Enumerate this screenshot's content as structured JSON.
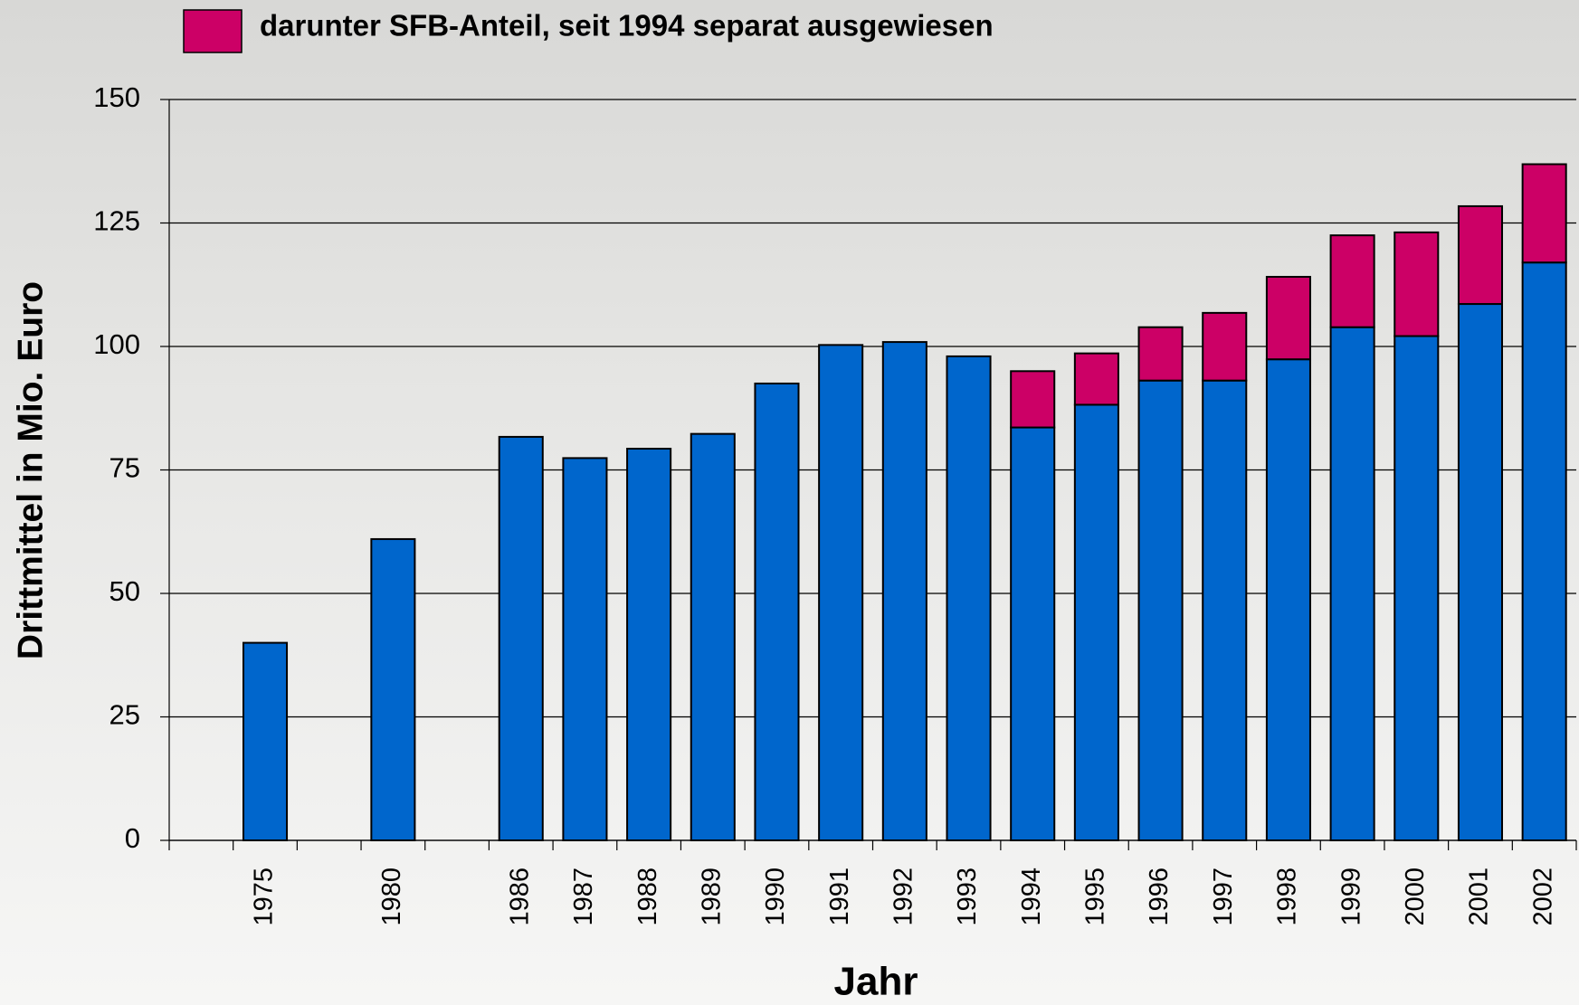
{
  "chart_data": {
    "type": "bar",
    "stacked": true,
    "y_label": "Drittmittel in Mio. Euro",
    "x_label": "Jahr",
    "categories": [
      null,
      "1975",
      null,
      "1980",
      null,
      "1986",
      "1987",
      "1988",
      "1989",
      "1990",
      "1991",
      "1992",
      "1993",
      "1994",
      "1995",
      "1996",
      "1997",
      "1998",
      "1999",
      "2000",
      "2001",
      "2002"
    ],
    "series": [
      {
        "color": "#0066cc",
        "values": [
          null,
          40,
          null,
          61,
          null,
          81.7,
          77.4,
          79.3,
          82.3,
          92.5,
          100.3,
          100.9,
          98,
          83.6,
          88.2,
          93.1,
          93.1,
          97.4,
          103.9,
          102.1,
          108.6,
          117
        ]
      },
      {
        "name": "darunter SFB-Anteil, seit 1994 separat ausgewiesen",
        "color": "#cc0066",
        "values": [
          null,
          null,
          null,
          null,
          null,
          null,
          null,
          null,
          null,
          null,
          null,
          null,
          null,
          11.4,
          10.4,
          10.8,
          13.7,
          16.7,
          18.6,
          21,
          19.8,
          19.9
        ]
      }
    ],
    "ylim": [
      0,
      150
    ],
    "yticks": [
      0,
      25,
      50,
      75,
      100,
      125,
      150
    ],
    "grid": true
  }
}
